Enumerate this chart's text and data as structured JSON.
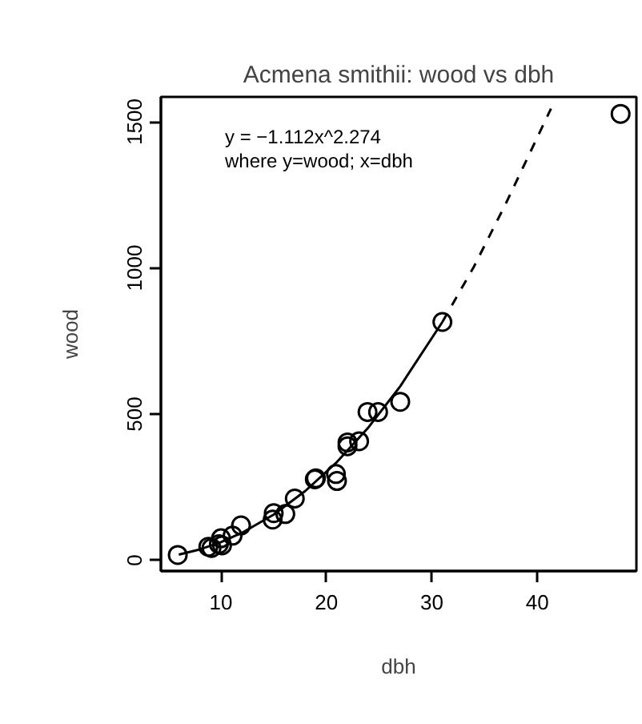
{
  "chart_data": {
    "type": "scatter",
    "title": "Acmena smithii: wood vs dbh",
    "xlabel": "dbh",
    "ylabel": "wood",
    "xlim": [
      4.3,
      49.4
    ],
    "ylim": [
      -37,
      1585
    ],
    "xticks": [
      10,
      20,
      30,
      40
    ],
    "yticks": [
      0,
      500,
      1000,
      1500
    ],
    "grid": false,
    "series": [
      {
        "color": "#000000",
        "marker": "circle",
        "x": [
          5.9,
          8.8,
          9.1,
          9.8,
          10.0,
          10.1,
          11.1,
          11.9,
          14.9,
          15.0,
          16.1,
          17.0,
          18.9,
          19.0,
          20.9,
          21.0,
          22.0,
          22.0,
          23.1,
          23.9,
          24.9,
          27.0,
          31.0,
          47.9
        ],
        "values": [
          18,
          46,
          42,
          55,
          75,
          51,
          84,
          119,
          139,
          161,
          158,
          211,
          277,
          280,
          295,
          271,
          390,
          403,
          407,
          507,
          507,
          542,
          815,
          1527
        ]
      },
      {
        "type": "line",
        "color": "#000000",
        "line_style": "solid",
        "x": [
          6,
          8,
          10,
          12,
          15,
          18,
          21,
          24,
          27,
          31
        ],
        "values": [
          19,
          37,
          62,
          94,
          156,
          237,
          336,
          455,
          595,
          815
        ]
      },
      {
        "type": "line",
        "color": "#000000",
        "line_style": "dashed",
        "x": [
          31,
          34,
          37,
          41.3
        ],
        "values": [
          815,
          1005,
          1219,
          1545
        ]
      }
    ],
    "annotations": [
      "y = −1.112x^2.274",
      "where y=wood; x=dbh"
    ]
  }
}
